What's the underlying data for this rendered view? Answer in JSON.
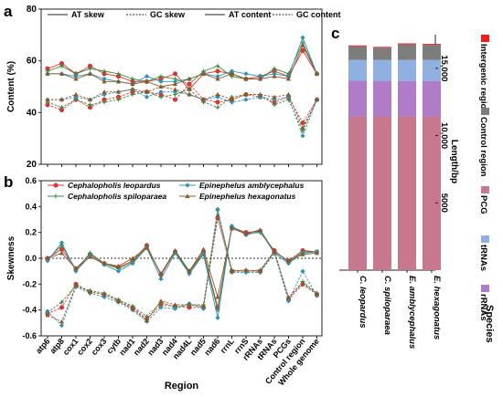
{
  "figure": {
    "panel_a_label": "a",
    "panel_b_label": "b",
    "panel_c_label": "c"
  },
  "colors": {
    "C. leopardus": "#e8312f",
    "C. spiloparaea": "#3a8a3a",
    "E. amblycephalus": "#2a93b5",
    "E. hexagonatus": "#8a5a2b",
    "PCG": "#c8788c",
    "rRNAs": "#b07cc8",
    "tRNAs": "#8fb0e0",
    "Control region": "#7d7d7d",
    "Intergenic region": "#e8201f",
    "grey_mark": "#7a7a7a"
  },
  "chart_data": [
    {
      "panel": "a",
      "type": "line",
      "categories": [
        "atp6",
        "atp8",
        "cox1",
        "cox2",
        "cox3",
        "cytb",
        "nad1",
        "nad2",
        "nad3",
        "nad4",
        "nad4L",
        "nad5",
        "nad6",
        "rrnL",
        "rrnS",
        "rRNAs",
        "tRNAs",
        "PCGs",
        "Control region",
        "Whole genome"
      ],
      "ylabel": "Content (%)",
      "ylim": [
        20,
        80
      ],
      "yticks": [
        20,
        40,
        60,
        80
      ],
      "legend": [
        {
          "name": "AT skew",
          "style": "solid"
        },
        {
          "name": "GC skew",
          "style": "dashed"
        },
        {
          "name": "AT content",
          "style": "solid"
        },
        {
          "name": "GC content",
          "style": "dashed"
        }
      ],
      "series": [
        {
          "name": "C. leopardus",
          "kind": "AT content",
          "values": [
            57,
            59,
            55,
            58,
            55,
            54,
            52,
            52,
            53,
            55,
            49,
            55,
            56,
            55,
            53,
            54,
            56,
            54,
            64,
            55
          ]
        },
        {
          "name": "C. spiloparaea",
          "kind": "AT content",
          "values": [
            56,
            58,
            55,
            57,
            56,
            55,
            53,
            52,
            54,
            53,
            51,
            56,
            58,
            54,
            53,
            53,
            57,
            55,
            67,
            55
          ]
        },
        {
          "name": "E. amblycephalus",
          "kind": "AT content",
          "values": [
            55,
            55,
            54,
            55,
            53,
            52,
            51,
            54,
            52,
            52,
            53,
            55,
            54,
            56,
            55,
            54,
            55,
            54,
            69,
            55
          ]
        },
        {
          "name": "E. hexagonatus",
          "kind": "AT content",
          "values": [
            55,
            55,
            53,
            55,
            52,
            52,
            51,
            52,
            50,
            51,
            53,
            55,
            53,
            55,
            53,
            53,
            54,
            53,
            66,
            55
          ]
        },
        {
          "name": "C. leopardus",
          "kind": "GC content",
          "values": [
            43,
            41,
            45,
            42,
            45,
            46,
            48,
            48,
            47,
            45,
            51,
            45,
            44,
            45,
            47,
            46,
            44,
            46,
            36,
            45
          ]
        },
        {
          "name": "C. spiloparaea",
          "kind": "GC content",
          "values": [
            44,
            42,
            45,
            43,
            44,
            45,
            47,
            48,
            46,
            47,
            49,
            44,
            42,
            46,
            47,
            47,
            43,
            45,
            33,
            45
          ]
        },
        {
          "name": "E. amblycephalus",
          "kind": "GC content",
          "values": [
            45,
            45,
            46,
            45,
            47,
            48,
            49,
            46,
            48,
            48,
            47,
            45,
            46,
            44,
            45,
            46,
            45,
            46,
            31,
            45
          ]
        },
        {
          "name": "E. hexagonatus",
          "kind": "GC content",
          "values": [
            45,
            45,
            47,
            45,
            48,
            48,
            49,
            48,
            50,
            49,
            47,
            45,
            47,
            45,
            47,
            47,
            46,
            47,
            34,
            45
          ]
        }
      ]
    },
    {
      "panel": "b",
      "type": "line",
      "categories": [
        "atp6",
        "atp8",
        "cox1",
        "cox2",
        "cox3",
        "cytb",
        "nad1",
        "nad2",
        "nad3",
        "nad4",
        "nad4L",
        "nad5",
        "nad6",
        "rrnL",
        "rrnS",
        "rRNAs",
        "tRNAs",
        "PCGs",
        "Control region",
        "Whole genome"
      ],
      "xlabel": "Region",
      "ylabel": "Skewness",
      "ylim": [
        -0.6,
        0.6
      ],
      "yticks": [
        -0.6,
        -0.4,
        -0.2,
        0.0,
        0.2,
        0.4,
        0.6
      ],
      "reference_line": 0,
      "series": [
        {
          "name": "Cephalopholis leopardus",
          "kind": "AT skew",
          "values": [
            0.0,
            0.07,
            -0.08,
            0.03,
            -0.04,
            -0.07,
            -0.02,
            0.1,
            -0.13,
            0.05,
            -0.1,
            0.05,
            -0.38,
            0.24,
            0.2,
            0.21,
            0.05,
            -0.02,
            0.06,
            0.05
          ]
        },
        {
          "name": "Cephalopholis spiloparaea",
          "kind": "AT skew",
          "values": [
            -0.01,
            0.1,
            -0.09,
            0.04,
            -0.04,
            -0.08,
            -0.03,
            0.09,
            -0.12,
            0.05,
            -0.11,
            0.04,
            -0.4,
            0.24,
            0.19,
            0.2,
            0.06,
            -0.03,
            0.05,
            0.05
          ]
        },
        {
          "name": "Epinephelus amblycephalus",
          "kind": "AT skew",
          "values": [
            -0.02,
            0.12,
            -0.1,
            0.02,
            -0.05,
            -0.1,
            -0.04,
            0.08,
            -0.16,
            0.04,
            -0.12,
            0.03,
            -0.46,
            0.25,
            0.18,
            0.21,
            0.04,
            -0.04,
            0.04,
            0.05
          ]
        },
        {
          "name": "Epinephelus hexagonatus",
          "kind": "AT skew",
          "values": [
            0.0,
            0.04,
            -0.08,
            0.01,
            -0.04,
            -0.06,
            0.0,
            0.08,
            -0.12,
            0.06,
            -0.1,
            0.07,
            -0.3,
            0.23,
            0.19,
            0.22,
            0.05,
            -0.02,
            0.03,
            0.04
          ]
        },
        {
          "name": "Cephalopholis leopardus",
          "kind": "GC skew",
          "values": [
            -0.43,
            -0.38,
            -0.2,
            -0.26,
            -0.28,
            -0.33,
            -0.38,
            -0.47,
            -0.36,
            -0.37,
            -0.38,
            -0.38,
            0.31,
            -0.1,
            -0.1,
            -0.1,
            0.06,
            -0.32,
            -0.2,
            -0.28
          ]
        },
        {
          "name": "Cephalopholis spiloparaea",
          "kind": "GC skew",
          "values": [
            -0.42,
            -0.34,
            -0.21,
            -0.25,
            -0.27,
            -0.32,
            -0.37,
            -0.45,
            -0.34,
            -0.38,
            -0.36,
            -0.36,
            0.37,
            -0.09,
            -0.1,
            -0.09,
            0.05,
            -0.31,
            -0.18,
            -0.27
          ]
        },
        {
          "name": "Epinephelus amblycephalus",
          "kind": "GC skew",
          "values": [
            -0.41,
            -0.52,
            -0.22,
            -0.27,
            -0.3,
            -0.34,
            -0.4,
            -0.49,
            -0.38,
            -0.39,
            -0.35,
            -0.39,
            0.38,
            -0.11,
            -0.11,
            -0.11,
            0.04,
            -0.33,
            -0.1,
            -0.29
          ]
        },
        {
          "name": "Epinephelus hexagonatus",
          "kind": "GC skew",
          "values": [
            -0.44,
            -0.49,
            -0.21,
            -0.26,
            -0.28,
            -0.33,
            -0.39,
            -0.48,
            -0.33,
            -0.36,
            -0.36,
            -0.37,
            0.33,
            -0.1,
            -0.09,
            -0.1,
            0.05,
            -0.3,
            -0.19,
            -0.28
          ]
        }
      ]
    },
    {
      "panel": "c",
      "type": "bar",
      "stacked": true,
      "categories": [
        "C. leopardus",
        "C. spiloparaea",
        "E. amblycephalus",
        "E. hexagonatus"
      ],
      "xlabel": "Species",
      "ylabel": "Length/bp",
      "ylim": [
        0,
        17500
      ],
      "yticks": [
        5000,
        10000,
        15000
      ],
      "ytick_labels": [
        "5000",
        "10,000",
        "15,000"
      ],
      "series": [
        {
          "name": "PCG",
          "values": [
            11424,
            11430,
            11424,
            11424
          ]
        },
        {
          "name": "rRNAs",
          "values": [
            2650,
            2640,
            2640,
            2640
          ]
        },
        {
          "name": "tRNAs",
          "values": [
            1560,
            1558,
            1560,
            1560
          ]
        },
        {
          "name": "Control region",
          "values": [
            1000,
            900,
            1150,
            1120
          ]
        },
        {
          "name": "Intergenic region",
          "values": [
            70,
            65,
            80,
            70
          ]
        }
      ],
      "legend_order": [
        "Intergenic region",
        "Control region",
        "PCG",
        "tRNAs",
        "rRNAs"
      ]
    }
  ]
}
